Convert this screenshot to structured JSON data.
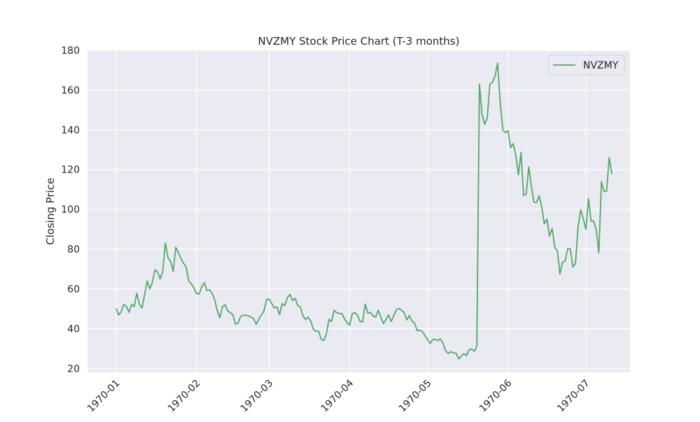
{
  "chart_data": {
    "type": "line",
    "title": "NVZMY Stock Price Chart (T-3 months)",
    "xlabel": "",
    "ylabel": "Closing Price",
    "xlim": [
      "1969-12-21",
      "1970-07-18"
    ],
    "ylim": [
      18,
      180
    ],
    "x_ticks": [
      "1970-01",
      "1970-02",
      "1970-03",
      "1970-04",
      "1970-05",
      "1970-06",
      "1970-07"
    ],
    "y_ticks": [
      20,
      40,
      60,
      80,
      100,
      120,
      140,
      160,
      180
    ],
    "grid": true,
    "legend_position": "top-right",
    "colors": {
      "plot_background": "#eaeaf2",
      "grid": "#ffffff",
      "line": "#55a868"
    },
    "series": [
      {
        "name": "NVZMY",
        "x": [
          "1970-01-01",
          "1970-01-02",
          "1970-01-03",
          "1970-01-04",
          "1970-01-05",
          "1970-01-06",
          "1970-01-07",
          "1970-01-08",
          "1970-01-09",
          "1970-01-10",
          "1970-01-11",
          "1970-01-12",
          "1970-01-13",
          "1970-01-14",
          "1970-01-15",
          "1970-01-16",
          "1970-01-17",
          "1970-01-18",
          "1970-01-19",
          "1970-01-20",
          "1970-01-21",
          "1970-01-22",
          "1970-01-23",
          "1970-01-24",
          "1970-01-25",
          "1970-01-26",
          "1970-01-27",
          "1970-01-28",
          "1970-01-29",
          "1970-01-30",
          "1970-01-31",
          "1970-02-01",
          "1970-02-02",
          "1970-02-03",
          "1970-02-04",
          "1970-02-05",
          "1970-02-06",
          "1970-02-07",
          "1970-02-08",
          "1970-02-09",
          "1970-02-10",
          "1970-02-11",
          "1970-02-12",
          "1970-02-13",
          "1970-02-14",
          "1970-02-15",
          "1970-02-16",
          "1970-02-17",
          "1970-02-18",
          "1970-02-19",
          "1970-02-20",
          "1970-02-21",
          "1970-02-22",
          "1970-02-23",
          "1970-02-24",
          "1970-02-25",
          "1970-02-26",
          "1970-02-27",
          "1970-02-28",
          "1970-03-01",
          "1970-03-02",
          "1970-03-03",
          "1970-03-04",
          "1970-03-05",
          "1970-03-06",
          "1970-03-07",
          "1970-03-08",
          "1970-03-09",
          "1970-03-10",
          "1970-03-11",
          "1970-03-12",
          "1970-03-13",
          "1970-03-14",
          "1970-03-15",
          "1970-03-16",
          "1970-03-17",
          "1970-03-18",
          "1970-03-19",
          "1970-03-20",
          "1970-03-21",
          "1970-03-22",
          "1970-03-23",
          "1970-03-24",
          "1970-03-25",
          "1970-03-26",
          "1970-03-27",
          "1970-03-28",
          "1970-03-29",
          "1970-03-30",
          "1970-03-31",
          "1970-04-01",
          "1970-04-02",
          "1970-04-03",
          "1970-04-04",
          "1970-04-05",
          "1970-04-06",
          "1970-04-07",
          "1970-04-08",
          "1970-04-09",
          "1970-04-10",
          "1970-04-11",
          "1970-04-12",
          "1970-04-13",
          "1970-04-14",
          "1970-04-15",
          "1970-04-16",
          "1970-04-17",
          "1970-04-18",
          "1970-04-19",
          "1970-04-20",
          "1970-04-21",
          "1970-04-22",
          "1970-04-23",
          "1970-04-24",
          "1970-04-25",
          "1970-04-26",
          "1970-04-27",
          "1970-04-28",
          "1970-04-29",
          "1970-04-30",
          "1970-05-01",
          "1970-05-02",
          "1970-05-03",
          "1970-05-04",
          "1970-05-05",
          "1970-05-06",
          "1970-05-07",
          "1970-05-08",
          "1970-05-09",
          "1970-05-10",
          "1970-05-11",
          "1970-05-12",
          "1970-05-13",
          "1970-05-14",
          "1970-05-15",
          "1970-05-16",
          "1970-05-17",
          "1970-05-18",
          "1970-05-19",
          "1970-05-20",
          "1970-05-21",
          "1970-05-22",
          "1970-05-23",
          "1970-05-24",
          "1970-05-25",
          "1970-05-26",
          "1970-05-27",
          "1970-05-28",
          "1970-05-29",
          "1970-05-30",
          "1970-05-31",
          "1970-06-01",
          "1970-06-02",
          "1970-06-03",
          "1970-06-04",
          "1970-06-05",
          "1970-06-06",
          "1970-06-07",
          "1970-06-08",
          "1970-06-09",
          "1970-06-10",
          "1970-06-11",
          "1970-06-12",
          "1970-06-13",
          "1970-06-14",
          "1970-06-15",
          "1970-06-16",
          "1970-06-17",
          "1970-06-18",
          "1970-06-19",
          "1970-06-20",
          "1970-06-21",
          "1970-06-22",
          "1970-06-23",
          "1970-06-24",
          "1970-06-25",
          "1970-06-26",
          "1970-06-27",
          "1970-06-28",
          "1970-06-29",
          "1970-06-30",
          "1970-07-01",
          "1970-07-02",
          "1970-07-03",
          "1970-07-04",
          "1970-07-05",
          "1970-07-06",
          "1970-07-07",
          "1970-07-08",
          "1970-07-09",
          "1970-07-10",
          "1970-07-11"
        ],
        "y": [
          50.0,
          46.9,
          48.6,
          52.2,
          51.2,
          48.2,
          52.1,
          51.1,
          57.8,
          52.3,
          50.4,
          57.2,
          64.0,
          60.0,
          63.4,
          69.6,
          68.6,
          65.0,
          68.8,
          83.1,
          75.6,
          73.8,
          68.8,
          80.9,
          78.2,
          75.2,
          73.0,
          71.0,
          64.0,
          62.6,
          60.5,
          57.6,
          57.4,
          61.0,
          63.0,
          59.2,
          59.6,
          57.8,
          54.6,
          49.0,
          45.6,
          51.0,
          52.0,
          49.0,
          48.0,
          47.0,
          42.4,
          42.8,
          46.2,
          46.7,
          46.8,
          46.4,
          45.8,
          45.0,
          42.2,
          44.8,
          46.8,
          49.0,
          54.8,
          54.8,
          52.6,
          50.4,
          51.0,
          47.0,
          52.6,
          51.6,
          55.6,
          57.2,
          54.2,
          55.2,
          51.6,
          51.0,
          46.4,
          44.6,
          45.8,
          43.8,
          39.8,
          38.6,
          38.8,
          34.8,
          34.0,
          37.0,
          44.6,
          43.6,
          49.2,
          48.0,
          47.6,
          47.6,
          45.0,
          43.0,
          41.8,
          47.6,
          48.0,
          46.8,
          43.6,
          43.6,
          52.4,
          47.8,
          48.2,
          46.4,
          45.8,
          49.2,
          45.8,
          42.6,
          44.6,
          46.8,
          43.6,
          46.6,
          49.4,
          50.2,
          49.2,
          48.0,
          44.4,
          46.6,
          43.8,
          42.8,
          39.0,
          39.2,
          38.6,
          36.6,
          34.6,
          32.4,
          34.6,
          34.6,
          34.0,
          34.8,
          32.6,
          28.8,
          27.6,
          28.4,
          27.8,
          27.6,
          24.8,
          26.2,
          27.4,
          26.4,
          29.4,
          29.8,
          28.6,
          31.0,
          163.0,
          148.0,
          142.8,
          146.0,
          163.0,
          164.0,
          167.0,
          173.5,
          154.0,
          140.0,
          138.6,
          139.6,
          131.0,
          133.0,
          127.4,
          117.4,
          128.6,
          107.0,
          107.6,
          121.4,
          111.6,
          103.6,
          103.4,
          106.8,
          101.2,
          92.8,
          95.0,
          86.6,
          90.4,
          80.8,
          79.2,
          67.6,
          73.4,
          74.0,
          80.2,
          80.2,
          71.0,
          72.8,
          91.0,
          99.8,
          95.2,
          90.0,
          105.4,
          94.0,
          94.2,
          89.6,
          78.2,
          114.0,
          109.0,
          109.2,
          126.0,
          118.0
        ]
      }
    ]
  }
}
